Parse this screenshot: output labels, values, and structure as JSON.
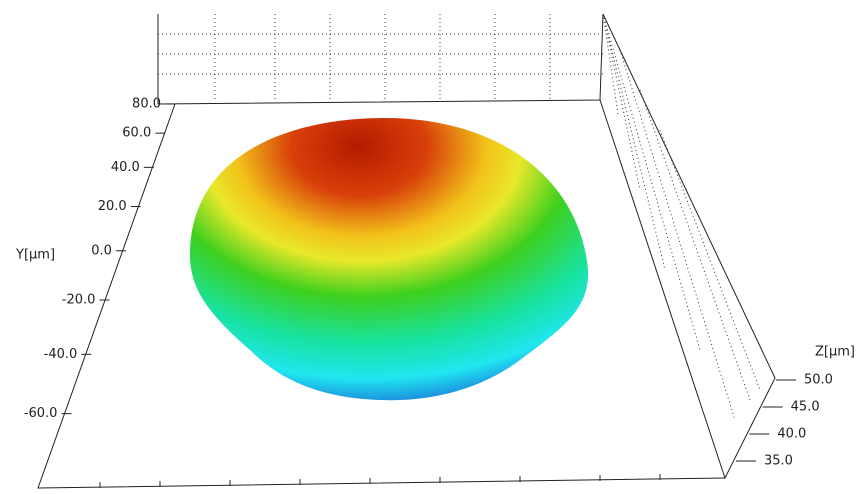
{
  "chart_data": {
    "type": "surface3d",
    "y_label": "Y[µm]",
    "z_label": "Z[µm]",
    "yticks": [
      {
        "value": 80,
        "label": "80.0"
      },
      {
        "value": 60,
        "label": "60.0"
      },
      {
        "value": 40,
        "label": "40.0"
      },
      {
        "value": 20,
        "label": "20.0"
      },
      {
        "value": 0,
        "label": "0.0"
      },
      {
        "value": -20,
        "label": "-20.0"
      },
      {
        "value": -40,
        "label": "-40.0"
      },
      {
        "value": -60,
        "label": "-60.0"
      }
    ],
    "zticks": [
      {
        "value": 50,
        "label": "50.0"
      },
      {
        "value": 45,
        "label": "45.0"
      },
      {
        "value": 40,
        "label": "40.0"
      },
      {
        "value": 35,
        "label": "35.0"
      }
    ]
  }
}
